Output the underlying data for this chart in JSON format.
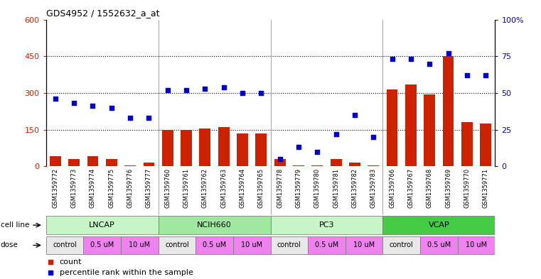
{
  "title": "GDS4952 / 1552632_a_at",
  "samples": [
    "GSM1359772",
    "GSM1359773",
    "GSM1359774",
    "GSM1359775",
    "GSM1359776",
    "GSM1359777",
    "GSM1359760",
    "GSM1359761",
    "GSM1359762",
    "GSM1359763",
    "GSM1359764",
    "GSM1359765",
    "GSM1359778",
    "GSM1359779",
    "GSM1359780",
    "GSM1359781",
    "GSM1359782",
    "GSM1359783",
    "GSM1359766",
    "GSM1359767",
    "GSM1359768",
    "GSM1359769",
    "GSM1359770",
    "GSM1359771"
  ],
  "counts": [
    40,
    30,
    40,
    30,
    5,
    15,
    150,
    150,
    155,
    160,
    135,
    135,
    30,
    5,
    5,
    30,
    15,
    5,
    315,
    335,
    295,
    450,
    180,
    175
  ],
  "percentiles": [
    46,
    43,
    41,
    40,
    33,
    33,
    52,
    52,
    53,
    54,
    50,
    50,
    5,
    13,
    10,
    22,
    35,
    20,
    73,
    73,
    70,
    77,
    62,
    62
  ],
  "cell_groups": [
    {
      "name": "LNCAP",
      "start": 0,
      "end": 6,
      "color": "#c8f5c8"
    },
    {
      "name": "NCIH660",
      "start": 6,
      "end": 12,
      "color": "#a0e8a0"
    },
    {
      "name": "PC3",
      "start": 12,
      "end": 18,
      "color": "#c8f5c8"
    },
    {
      "name": "VCAP",
      "start": 18,
      "end": 24,
      "color": "#44cc44"
    }
  ],
  "dose_groups": [
    {
      "label": "control",
      "start": 0,
      "end": 2,
      "color": "#e8e8e8"
    },
    {
      "label": "0.5 uM",
      "start": 2,
      "end": 4,
      "color": "#ee82ee"
    },
    {
      "label": "10 uM",
      "start": 4,
      "end": 6,
      "color": "#ee82ee"
    },
    {
      "label": "control",
      "start": 6,
      "end": 8,
      "color": "#e8e8e8"
    },
    {
      "label": "0.5 uM",
      "start": 8,
      "end": 10,
      "color": "#ee82ee"
    },
    {
      "label": "10 uM",
      "start": 10,
      "end": 12,
      "color": "#ee82ee"
    },
    {
      "label": "control",
      "start": 12,
      "end": 14,
      "color": "#e8e8e8"
    },
    {
      "label": "0.5 uM",
      "start": 14,
      "end": 16,
      "color": "#ee82ee"
    },
    {
      "label": "10 uM",
      "start": 16,
      "end": 18,
      "color": "#ee82ee"
    },
    {
      "label": "control",
      "start": 18,
      "end": 20,
      "color": "#e8e8e8"
    },
    {
      "label": "0.5 uM",
      "start": 20,
      "end": 22,
      "color": "#ee82ee"
    },
    {
      "label": "10 uM",
      "start": 22,
      "end": 24,
      "color": "#ee82ee"
    }
  ],
  "ylim_left": [
    0,
    600
  ],
  "ylim_right": [
    0,
    100
  ],
  "yticks_left": [
    0,
    150,
    300,
    450,
    600
  ],
  "yticks_right": [
    0,
    25,
    50,
    75,
    100
  ],
  "bar_color": "#CC2200",
  "scatter_color": "#0000CC",
  "label_color_left": "#CC2200",
  "label_color_right": "#0000CC",
  "group_separators": [
    5.5,
    11.5,
    17.5
  ],
  "hlines": [
    150,
    300,
    450
  ],
  "xlabel_bg": "#d8d8d8"
}
